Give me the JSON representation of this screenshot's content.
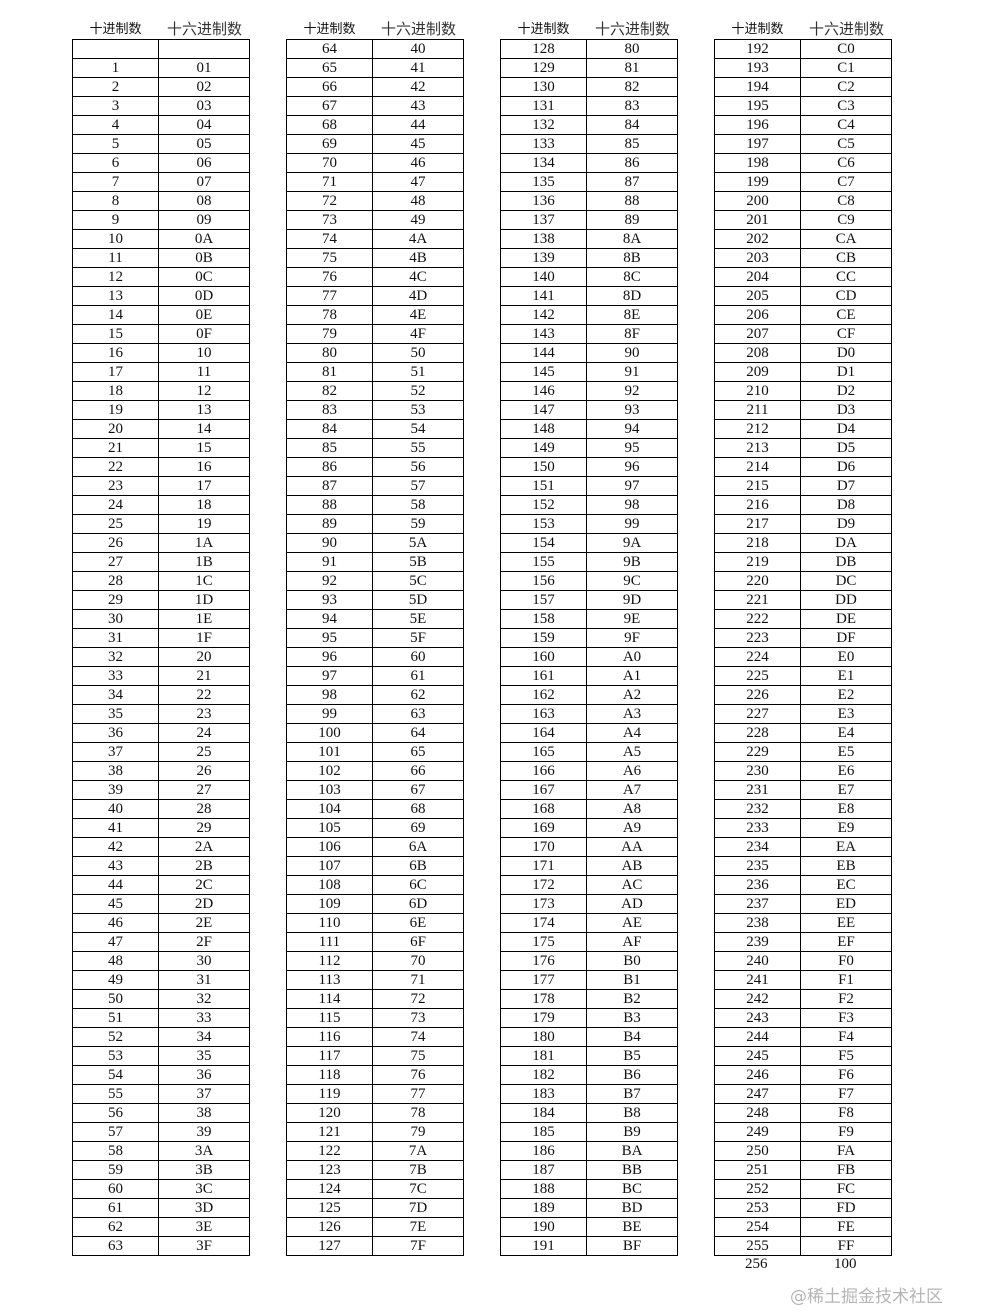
{
  "header_dec": "十进制数",
  "header_hex": "十六进制数",
  "tables": [
    {
      "dec": [
        "",
        "1",
        "2",
        "3",
        "4",
        "5",
        "6",
        "7",
        "8",
        "9",
        "10",
        "11",
        "12",
        "13",
        "14",
        "15",
        "16",
        "17",
        "18",
        "19",
        "20",
        "21",
        "22",
        "23",
        "24",
        "25",
        "26",
        "27",
        "28",
        "29",
        "30",
        "31",
        "32",
        "33",
        "34",
        "35",
        "36",
        "37",
        "38",
        "39",
        "40",
        "41",
        "42",
        "43",
        "44",
        "45",
        "46",
        "47",
        "48",
        "49",
        "50",
        "51",
        "52",
        "53",
        "54",
        "55",
        "56",
        "57",
        "58",
        "59",
        "60",
        "61",
        "62",
        "63"
      ],
      "hex": [
        "",
        "01",
        "02",
        "03",
        "04",
        "05",
        "06",
        "07",
        "08",
        "09",
        "0A",
        "0B",
        "0C",
        "0D",
        "0E",
        "0F",
        "10",
        "11",
        "12",
        "13",
        "14",
        "15",
        "16",
        "17",
        "18",
        "19",
        "1A",
        "1B",
        "1C",
        "1D",
        "1E",
        "1F",
        "20",
        "21",
        "22",
        "23",
        "24",
        "25",
        "26",
        "27",
        "28",
        "29",
        "2A",
        "2B",
        "2C",
        "2D",
        "2E",
        "2F",
        "30",
        "31",
        "32",
        "33",
        "34",
        "35",
        "36",
        "37",
        "38",
        "39",
        "3A",
        "3B",
        "3C",
        "3D",
        "3E",
        "3F"
      ]
    },
    {
      "dec": [
        "64",
        "65",
        "66",
        "67",
        "68",
        "69",
        "70",
        "71",
        "72",
        "73",
        "74",
        "75",
        "76",
        "77",
        "78",
        "79",
        "80",
        "81",
        "82",
        "83",
        "84",
        "85",
        "86",
        "87",
        "88",
        "89",
        "90",
        "91",
        "92",
        "93",
        "94",
        "95",
        "96",
        "97",
        "98",
        "99",
        "100",
        "101",
        "102",
        "103",
        "104",
        "105",
        "106",
        "107",
        "108",
        "109",
        "110",
        "111",
        "112",
        "113",
        "114",
        "115",
        "116",
        "117",
        "118",
        "119",
        "120",
        "121",
        "122",
        "123",
        "124",
        "125",
        "126",
        "127"
      ],
      "hex": [
        "40",
        "41",
        "42",
        "43",
        "44",
        "45",
        "46",
        "47",
        "48",
        "49",
        "4A",
        "4B",
        "4C",
        "4D",
        "4E",
        "4F",
        "50",
        "51",
        "52",
        "53",
        "54",
        "55",
        "56",
        "57",
        "58",
        "59",
        "5A",
        "5B",
        "5C",
        "5D",
        "5E",
        "5F",
        "60",
        "61",
        "62",
        "63",
        "64",
        "65",
        "66",
        "67",
        "68",
        "69",
        "6A",
        "6B",
        "6C",
        "6D",
        "6E",
        "6F",
        "70",
        "71",
        "72",
        "73",
        "74",
        "75",
        "76",
        "77",
        "78",
        "79",
        "7A",
        "7B",
        "7C",
        "7D",
        "7E",
        "7F"
      ]
    },
    {
      "dec": [
        "128",
        "129",
        "130",
        "131",
        "132",
        "133",
        "134",
        "135",
        "136",
        "137",
        "138",
        "139",
        "140",
        "141",
        "142",
        "143",
        "144",
        "145",
        "146",
        "147",
        "148",
        "149",
        "150",
        "151",
        "152",
        "153",
        "154",
        "155",
        "156",
        "157",
        "158",
        "159",
        "160",
        "161",
        "162",
        "163",
        "164",
        "165",
        "166",
        "167",
        "168",
        "169",
        "170",
        "171",
        "172",
        "173",
        "174",
        "175",
        "176",
        "177",
        "178",
        "179",
        "180",
        "181",
        "182",
        "183",
        "184",
        "185",
        "186",
        "187",
        "188",
        "189",
        "190",
        "191"
      ],
      "hex": [
        "80",
        "81",
        "82",
        "83",
        "84",
        "85",
        "86",
        "87",
        "88",
        "89",
        "8A",
        "8B",
        "8C",
        "8D",
        "8E",
        "8F",
        "90",
        "91",
        "92",
        "93",
        "94",
        "95",
        "96",
        "97",
        "98",
        "99",
        "9A",
        "9B",
        "9C",
        "9D",
        "9E",
        "9F",
        "A0",
        "A1",
        "A2",
        "A3",
        "A4",
        "A5",
        "A6",
        "A7",
        "A8",
        "A9",
        "AA",
        "AB",
        "AC",
        "AD",
        "AE",
        "AF",
        "B0",
        "B1",
        "B2",
        "B3",
        "B4",
        "B5",
        "B6",
        "B7",
        "B8",
        "B9",
        "BA",
        "BB",
        "BC",
        "BD",
        "BE",
        "BF"
      ]
    },
    {
      "dec": [
        "192",
        "193",
        "194",
        "195",
        "196",
        "197",
        "198",
        "199",
        "200",
        "201",
        "202",
        "203",
        "204",
        "205",
        "206",
        "207",
        "208",
        "209",
        "210",
        "211",
        "212",
        "213",
        "214",
        "215",
        "216",
        "217",
        "218",
        "219",
        "220",
        "221",
        "222",
        "223",
        "224",
        "225",
        "226",
        "227",
        "228",
        "229",
        "230",
        "231",
        "232",
        "233",
        "234",
        "235",
        "236",
        "237",
        "238",
        "239",
        "240",
        "241",
        "242",
        "243",
        "244",
        "245",
        "246",
        "247",
        "248",
        "249",
        "250",
        "251",
        "252",
        "253",
        "254",
        "255"
      ],
      "hex": [
        "C0",
        "C1",
        "C2",
        "C3",
        "C4",
        "C5",
        "C6",
        "C7",
        "C8",
        "C9",
        "CA",
        "CB",
        "CC",
        "CD",
        "CE",
        "CF",
        "D0",
        "D1",
        "D2",
        "D3",
        "D4",
        "D5",
        "D6",
        "D7",
        "D8",
        "D9",
        "DA",
        "DB",
        "DC",
        "DD",
        "DE",
        "DF",
        "E0",
        "E1",
        "E2",
        "E3",
        "E4",
        "E5",
        "E6",
        "E7",
        "E8",
        "E9",
        "EA",
        "EB",
        "EC",
        "ED",
        "EE",
        "EF",
        "F0",
        "F1",
        "F2",
        "F3",
        "F4",
        "F5",
        "F6",
        "F7",
        "F8",
        "F9",
        "FA",
        "FB",
        "FC",
        "FD",
        "FE",
        "FF"
      ]
    }
  ],
  "footer": {
    "dec": "256",
    "hex": "100"
  },
  "watermark": "@稀土掘金技术社区"
}
